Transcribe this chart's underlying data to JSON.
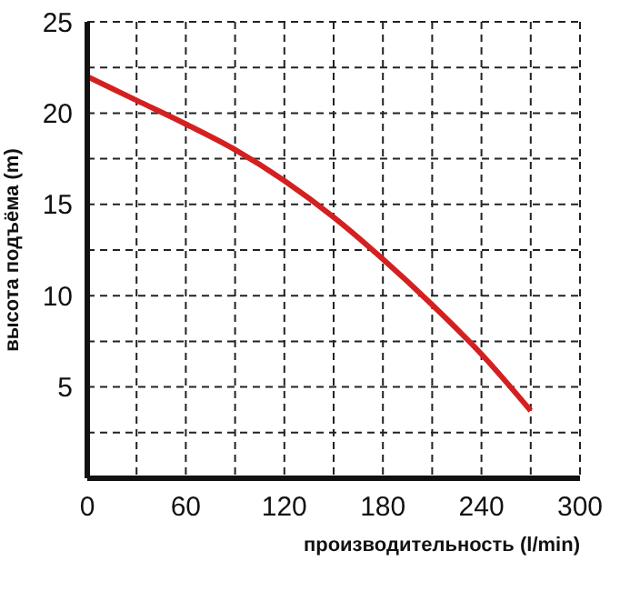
{
  "chart_data": {
    "type": "line",
    "xlabel": "производительность (l/min)",
    "ylabel": "высота подъёма (m)",
    "x": [
      0,
      30,
      60,
      90,
      120,
      150,
      180,
      210,
      240,
      270
    ],
    "series": [
      {
        "color": "#d42020",
        "values": [
          22,
          20.7,
          19.4,
          18,
          16.3,
          14.3,
          12,
          9.5,
          6.8,
          3.7
        ]
      }
    ],
    "xlim": [
      0,
      300
    ],
    "xticks": [
      0,
      {
        "value": 30,
        "label": null
      },
      60,
      {
        "value": 90,
        "label": null
      },
      120,
      {
        "value": 150,
        "label": null
      },
      180,
      {
        "value": 210,
        "label": null
      },
      240,
      {
        "value": 270,
        "label": null
      },
      300
    ],
    "ylim": [
      0,
      25
    ],
    "yticks": [
      {
        "value": 0,
        "label": null
      },
      {
        "value": 2.5,
        "label": null
      },
      5,
      {
        "value": 7.5,
        "label": null
      },
      10,
      {
        "value": 12.5,
        "label": null
      },
      15,
      {
        "value": 17.5,
        "label": null
      },
      20,
      {
        "value": 22.5,
        "label": null
      },
      25
    ],
    "grid": true,
    "marker": "none",
    "line_style": "solid",
    "legend": false
  }
}
